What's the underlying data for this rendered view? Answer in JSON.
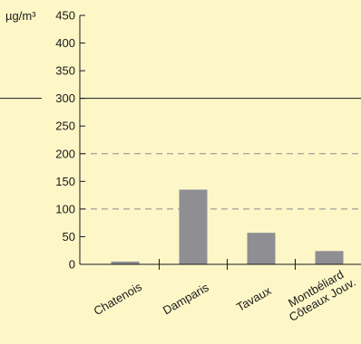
{
  "chart_data": {
    "type": "bar",
    "unit": "µg/m³",
    "categories": [
      "Chatenois",
      "Damparis",
      "Tavaux",
      "Montbéliard\nCôteaux Jouv."
    ],
    "values": [
      5,
      135,
      57,
      24
    ],
    "ylim": [
      0,
      450
    ],
    "yticks": [
      0,
      50,
      100,
      150,
      200,
      250,
      300,
      350,
      400,
      450
    ],
    "reference_lines": [
      {
        "value": 300,
        "style": "solid"
      },
      {
        "value": 200,
        "style": "dashed"
      },
      {
        "value": 100,
        "style": "dashed"
      }
    ],
    "colors": {
      "background": "#fdf7c8",
      "bar": "#8e8e93",
      "axis": "#1a1a1a",
      "dashed_line": "#8c8c8c"
    }
  }
}
